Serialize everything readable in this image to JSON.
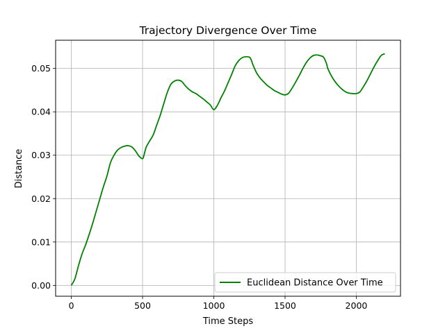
{
  "chart_data": {
    "type": "line",
    "title": "Trajectory Divergence Over Time",
    "xlabel": "Time Steps",
    "ylabel": "Distance",
    "xlim": [
      -110,
      2310
    ],
    "ylim": [
      -0.0025,
      0.0565
    ],
    "xticks": [
      0,
      500,
      1000,
      1500,
      2000
    ],
    "xtick_labels": [
      "0",
      "500",
      "1000",
      "1500",
      "2000"
    ],
    "yticks": [
      0.0,
      0.01,
      0.02,
      0.03,
      0.04,
      0.05
    ],
    "ytick_labels": [
      "0.00",
      "0.01",
      "0.02",
      "0.03",
      "0.04",
      "0.05"
    ],
    "grid": true,
    "legend_position": "lower-right",
    "series": [
      {
        "name": "Euclidean Distance Over Time",
        "color": "#008000",
        "x": [
          0,
          25,
          50,
          75,
          100,
          125,
          150,
          175,
          200,
          225,
          250,
          275,
          300,
          325,
          350,
          375,
          400,
          425,
          450,
          475,
          500,
          510,
          525,
          550,
          575,
          600,
          625,
          650,
          675,
          700,
          725,
          750,
          775,
          800,
          825,
          850,
          875,
          900,
          925,
          950,
          975,
          1000,
          1025,
          1050,
          1075,
          1100,
          1125,
          1150,
          1175,
          1200,
          1225,
          1250,
          1262,
          1275,
          1300,
          1325,
          1350,
          1375,
          1400,
          1425,
          1450,
          1475,
          1500,
          1525,
          1550,
          1575,
          1600,
          1625,
          1650,
          1675,
          1700,
          1725,
          1750,
          1770,
          1790,
          1800,
          1825,
          1850,
          1875,
          1900,
          1925,
          1950,
          1975,
          2000,
          2025,
          2050,
          2075,
          2100,
          2125,
          2150,
          2175,
          2200
        ],
        "y": [
          0.0,
          0.0015,
          0.0045,
          0.0072,
          0.0093,
          0.0117,
          0.0143,
          0.0171,
          0.0199,
          0.0227,
          0.0252,
          0.0283,
          0.03,
          0.0312,
          0.0318,
          0.0321,
          0.0322,
          0.0319,
          0.031,
          0.0298,
          0.0292,
          0.03,
          0.0318,
          0.0333,
          0.0347,
          0.037,
          0.0393,
          0.042,
          0.0446,
          0.0464,
          0.0471,
          0.0473,
          0.047,
          0.046,
          0.0452,
          0.0446,
          0.0442,
          0.0436,
          0.043,
          0.0423,
          0.0416,
          0.0405,
          0.0415,
          0.0432,
          0.0448,
          0.0467,
          0.0486,
          0.0506,
          0.0518,
          0.0525,
          0.0527,
          0.0526,
          0.052,
          0.0508,
          0.049,
          0.0478,
          0.0469,
          0.0461,
          0.0455,
          0.0449,
          0.0445,
          0.0441,
          0.0439,
          0.0443,
          0.0455,
          0.0469,
          0.0484,
          0.05,
          0.0514,
          0.0524,
          0.053,
          0.0531,
          0.0529,
          0.0526,
          0.0512,
          0.05,
          0.0483,
          0.047,
          0.046,
          0.0452,
          0.0446,
          0.0443,
          0.0442,
          0.0442,
          0.0446,
          0.0458,
          0.0472,
          0.0488,
          0.0504,
          0.0518,
          0.053,
          0.0534
        ]
      }
    ]
  }
}
